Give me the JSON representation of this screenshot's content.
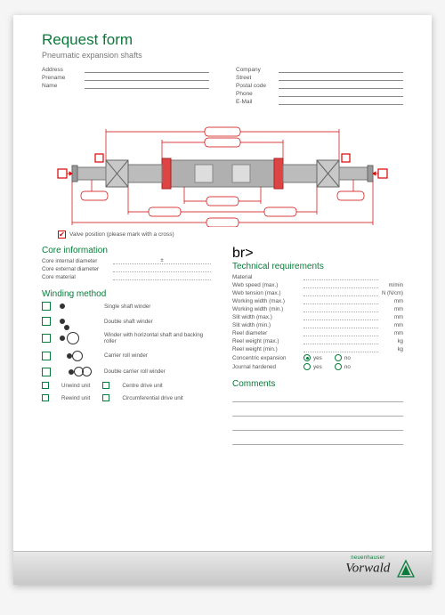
{
  "header": {
    "title": "Request form",
    "subtitle": "Pneumatic expansion shafts"
  },
  "contact_left": [
    {
      "label": "Address"
    },
    {
      "label": "Prename"
    },
    {
      "label": "Name"
    }
  ],
  "contact_right": [
    {
      "label": "Company"
    },
    {
      "label": "Street"
    },
    {
      "label": "Postal code"
    },
    {
      "label": "Phone"
    },
    {
      "label": "E-Mail"
    }
  ],
  "valve": {
    "checked": true,
    "label": "Valve position (please mark with a cross)"
  },
  "core": {
    "title": "Core information",
    "rows": [
      {
        "label": "Core internal diameter",
        "value": "±"
      },
      {
        "label": "Core external diameter",
        "value": ""
      },
      {
        "label": "Core material",
        "value": ""
      }
    ]
  },
  "winding": {
    "title": "Winding method",
    "methods": [
      {
        "label": "Single shaft winder",
        "icon": "single"
      },
      {
        "label": "Double shaft winder",
        "icon": "double"
      },
      {
        "label": "Winder with horizontal shaft and backing roller",
        "icon": "backing"
      },
      {
        "label": "Carrier roll winder",
        "icon": "carrier"
      },
      {
        "label": "Double carrier roll winder",
        "icon": "dcarrier"
      }
    ],
    "units": [
      "Unwind unit",
      "Centre drive unit",
      "Rewind unit",
      "Circumferential drive unit"
    ]
  },
  "tech": {
    "title": "Technical requirements",
    "rows": [
      {
        "label": "Material",
        "unit": ""
      },
      {
        "label": "Web speed (max.)",
        "unit": "m/min"
      },
      {
        "label": "Web tension (max.)",
        "unit": "N (N/cm)"
      },
      {
        "label": "Working width (max.)",
        "unit": "mm"
      },
      {
        "label": "Working width (min.)",
        "unit": "mm"
      },
      {
        "label": "Slit width (max.)",
        "unit": "mm"
      },
      {
        "label": "Slit width (min.)",
        "unit": "mm"
      },
      {
        "label": "Reel diameter",
        "unit": "mm"
      },
      {
        "label": "Reel weight (max.)",
        "unit": "kg"
      },
      {
        "label": "Reel weight (min.)",
        "unit": "kg"
      }
    ],
    "radios": [
      {
        "label": "Concentric expansion",
        "yes": "yes",
        "no": "no",
        "sel": "yes"
      },
      {
        "label": "Journal hardened",
        "yes": "yes",
        "no": "no",
        "sel": ""
      }
    ]
  },
  "comments": {
    "title": "Comments",
    "lines": 4
  },
  "logo": {
    "brand": "Vorwald",
    "group": "neuenhauser"
  },
  "colors": {
    "accent": "#0a7a3a",
    "red": "#d00000",
    "shaft_fill": "#b8b8b8",
    "shaft_dark": "#8a8a8a",
    "dim_line": "#c00000"
  },
  "diagram": {
    "type": "engineering-drawing",
    "description": "pneumatic expansion shaft side view with dimension lines and valve position markers"
  }
}
